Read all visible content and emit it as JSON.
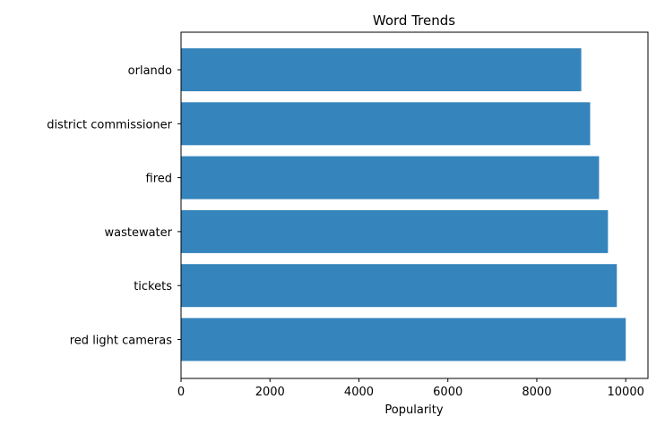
{
  "chart_data": {
    "type": "bar",
    "orientation": "horizontal",
    "title": "Word Trends",
    "xlabel": "Popularity",
    "ylabel": "",
    "categories": [
      "orlando",
      "district commissioner",
      "fired",
      "wastewater",
      "tickets",
      "red light cameras"
    ],
    "values": [
      9000,
      9200,
      9400,
      9600,
      9800,
      10000
    ],
    "xlim": [
      0,
      10500
    ],
    "xticks": [
      0,
      2000,
      4000,
      6000,
      8000,
      10000
    ],
    "xtick_labels": [
      "0",
      "2000",
      "4000",
      "6000",
      "8000",
      "10000"
    ],
    "bar_color": "#3584bc",
    "grid": false,
    "legend": "none"
  }
}
